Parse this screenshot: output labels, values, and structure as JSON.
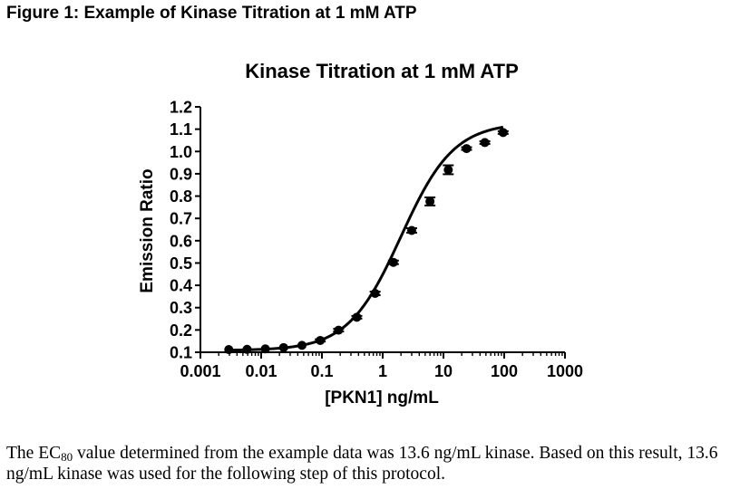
{
  "figure": {
    "heading": "Figure 1: Example of Kinase Titration at 1 mM ATP"
  },
  "chart_data": {
    "type": "scatter",
    "title": "Kinase Titration at 1 mM ATP",
    "xlabel": "[PKN1] ng/mL",
    "ylabel": "Emission Ratio",
    "xscale": "log",
    "xlim": [
      0.001,
      1000
    ],
    "ylim": [
      0.1,
      1.2
    ],
    "xticks": [
      0.001,
      0.01,
      0.1,
      1,
      10,
      100,
      1000
    ],
    "xtick_labels": [
      "0.001",
      "0.01",
      "0.1",
      "1",
      "10",
      "100",
      "1000"
    ],
    "yticks": [
      0.1,
      0.2,
      0.3,
      0.4,
      0.5,
      0.6,
      0.7,
      0.8,
      0.9,
      1.0,
      1.1,
      1.2
    ],
    "ytick_labels": [
      "0.1",
      "0.2",
      "0.3",
      "0.4",
      "0.5",
      "0.6",
      "0.7",
      "0.8",
      "0.9",
      "1.0",
      "1.1",
      "1.2"
    ],
    "series": [
      {
        "name": "PKN1",
        "x": [
          0.00293,
          0.00586,
          0.0117,
          0.0234,
          0.0469,
          0.0938,
          0.188,
          0.375,
          0.75,
          1.5,
          3.0,
          6.0,
          12.0,
          24.0,
          48.0,
          96.0
        ],
        "y": [
          0.112,
          0.113,
          0.115,
          0.121,
          0.131,
          0.153,
          0.199,
          0.257,
          0.364,
          0.503,
          0.646,
          0.776,
          0.918,
          1.013,
          1.04,
          1.085
        ],
        "error": [
          0.004,
          0.004,
          0.004,
          0.004,
          0.004,
          0.005,
          0.006,
          0.006,
          0.008,
          0.008,
          0.01,
          0.018,
          0.02,
          0.006,
          0.006,
          0.006
        ]
      }
    ],
    "fit": {
      "model": "sigmoidal dose-response",
      "bottom": 0.108,
      "top": 1.13,
      "ec50": 2.0,
      "hill": 1.0
    }
  },
  "caption": {
    "text_before": "The EC",
    "subscript": "80",
    "text_after": " value determined from the example data was 13.6 ng/mL kinase.  Based on this result, 13.6 ng/mL kinase was used for the following step of this protocol."
  }
}
